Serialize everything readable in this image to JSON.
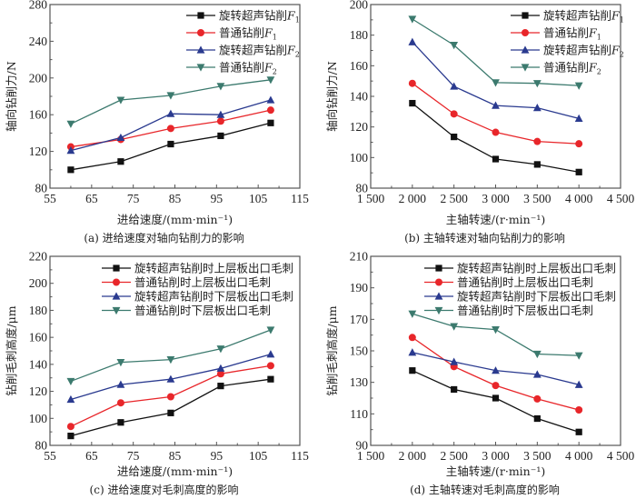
{
  "chart_data": [
    {
      "id": "a",
      "type": "line",
      "caption": "(a) 进给速度对轴向钻削力的影响",
      "xlabel": "进给速度/(mm·min⁻¹)",
      "ylabel": "轴向钻削力/N",
      "xlim": [
        55,
        115
      ],
      "ylim": [
        80,
        280
      ],
      "xticks": [
        55,
        65,
        75,
        85,
        95,
        105,
        115
      ],
      "xtick_labels": [
        "55",
        "65",
        "75",
        "85",
        "95",
        "105",
        "115"
      ],
      "yticks": [
        80,
        120,
        160,
        200,
        240,
        280
      ],
      "ytick_labels": [
        "80",
        "120",
        "160",
        "200",
        "240",
        "280"
      ],
      "x": [
        60,
        72,
        84,
        96,
        108
      ],
      "legend_position": "top-right",
      "grid": false,
      "series": [
        {
          "name": "旋转超声钻削",
          "sym": "F",
          "sub": "1",
          "color": "#111111",
          "marker": "square",
          "values": [
            100,
            109,
            128,
            137,
            151
          ]
        },
        {
          "name": "普通钻削",
          "sym": "F",
          "sub": "1",
          "color": "#e8262a",
          "marker": "circle",
          "values": [
            125,
            133,
            145,
            153,
            165
          ]
        },
        {
          "name": "旋转超声钻削",
          "sym": "F",
          "sub": "2",
          "color": "#2a3a8f",
          "marker": "triangle-up",
          "values": [
            121,
            135,
            161,
            160,
            176
          ]
        },
        {
          "name": "普通钻削",
          "sym": "F",
          "sub": "2",
          "color": "#3c7a6e",
          "marker": "triangle-down",
          "values": [
            150,
            176,
            181,
            191,
            198
          ]
        }
      ]
    },
    {
      "id": "b",
      "type": "line",
      "caption": "(b) 主轴转速对轴向钻削力的影响",
      "xlabel": "主轴转速/(r·min⁻¹)",
      "ylabel": "轴向钻削力/N",
      "xlim": [
        1500,
        4500
      ],
      "ylim": [
        80,
        200
      ],
      "xticks": [
        1500,
        2000,
        2500,
        3000,
        3500,
        4000,
        4500
      ],
      "xtick_labels": [
        "1 500",
        "2 000",
        "2 500",
        "3 000",
        "3 500",
        "4 000",
        "4 500"
      ],
      "yticks": [
        80,
        100,
        120,
        140,
        160,
        180,
        200
      ],
      "ytick_labels": [
        "80",
        "100",
        "120",
        "140",
        "160",
        "180",
        "200"
      ],
      "x": [
        2000,
        2500,
        3000,
        3500,
        4000
      ],
      "legend_position": "top-right",
      "grid": false,
      "series": [
        {
          "name": "旋转超声钻削",
          "sym": "F",
          "sub": "1",
          "color": "#111111",
          "marker": "square",
          "values": [
            135.5,
            113.5,
            99,
            95.5,
            90.5
          ]
        },
        {
          "name": "普通钻削",
          "sym": "F",
          "sub": "1",
          "color": "#e8262a",
          "marker": "circle",
          "values": [
            148.5,
            128.5,
            116.5,
            110.5,
            109
          ]
        },
        {
          "name": "旋转超声钻削",
          "sym": "F",
          "sub": "2",
          "color": "#2a3a8f",
          "marker": "triangle-up",
          "values": [
            175.5,
            146.5,
            134,
            132.5,
            125.5
          ]
        },
        {
          "name": "普通钻削",
          "sym": "F",
          "sub": "2",
          "color": "#3c7a6e",
          "marker": "triangle-down",
          "values": [
            190.5,
            173.5,
            149,
            148.5,
            147
          ]
        }
      ]
    },
    {
      "id": "c",
      "type": "line",
      "caption": "(c) 进给速度对毛刺高度的影响",
      "xlabel": "进给速度/(mm·min⁻¹)",
      "ylabel": "钻削毛刺高度/μm",
      "xlim": [
        55,
        115
      ],
      "ylim": [
        80,
        220
      ],
      "xticks": [
        55,
        65,
        75,
        85,
        95,
        105,
        115
      ],
      "xtick_labels": [
        "55",
        "65",
        "75",
        "85",
        "95",
        "105",
        "115"
      ],
      "yticks": [
        80,
        100,
        120,
        140,
        160,
        180,
        200,
        220
      ],
      "ytick_labels": [
        "80",
        "100",
        "120",
        "140",
        "160",
        "180",
        "200",
        "220"
      ],
      "x": [
        60,
        72,
        84,
        96,
        108
      ],
      "legend_position": "top-right",
      "grid": false,
      "series": [
        {
          "name": "旋转超声钻削时上层板出口毛刺",
          "sym": "",
          "sub": "",
          "color": "#111111",
          "marker": "square",
          "values": [
            87,
            97,
            104,
            124,
            129
          ]
        },
        {
          "name": "普通钻削时上层板出口毛刺",
          "sym": "",
          "sub": "",
          "color": "#e8262a",
          "marker": "circle",
          "values": [
            94,
            111.5,
            116,
            133,
            139
          ]
        },
        {
          "name": "旋转超声钻削时下层板出口毛刺",
          "sym": "",
          "sub": "",
          "color": "#2a3a8f",
          "marker": "triangle-up",
          "values": [
            114,
            125,
            129,
            137,
            147.5
          ]
        },
        {
          "name": "普通钻削时下层板出口毛刺",
          "sym": "",
          "sub": "",
          "color": "#3c7a6e",
          "marker": "triangle-down",
          "values": [
            127.5,
            141.5,
            143.5,
            151.5,
            165.5
          ]
        }
      ]
    },
    {
      "id": "d",
      "type": "line",
      "caption": "(d) 主轴转速对毛刺高度的影响",
      "xlabel": "主轴转速/(r·min⁻¹)",
      "ylabel": "钻削毛刺高度/μm",
      "xlim": [
        1500,
        4500
      ],
      "ylim": [
        90,
        210
      ],
      "xticks": [
        1500,
        2000,
        2500,
        3000,
        3500,
        4000,
        4500
      ],
      "xtick_labels": [
        "1 500",
        "2 000",
        "2 500",
        "3 000",
        "3 500",
        "4 000",
        "4 500"
      ],
      "yticks": [
        90,
        110,
        130,
        150,
        170,
        190,
        210
      ],
      "ytick_labels": [
        "90",
        "110",
        "130",
        "150",
        "170",
        "190",
        "210"
      ],
      "x": [
        2000,
        2500,
        3000,
        3500,
        4000
      ],
      "legend_position": "top-right",
      "grid": false,
      "series": [
        {
          "name": "旋转超声钻削时上层板出口毛刺",
          "sym": "",
          "sub": "",
          "color": "#111111",
          "marker": "square",
          "values": [
            137.5,
            125.5,
            120,
            107,
            98.5
          ]
        },
        {
          "name": "普通钻削时上层板出口毛刺",
          "sym": "",
          "sub": "",
          "color": "#e8262a",
          "marker": "circle",
          "values": [
            158.5,
            140,
            128,
            119.5,
            112.5
          ]
        },
        {
          "name": "旋转超声钻削时下层板出口毛刺",
          "sym": "",
          "sub": "",
          "color": "#2a3a8f",
          "marker": "triangle-up",
          "values": [
            149,
            143,
            137.5,
            135,
            128.5
          ]
        },
        {
          "name": "普通钻削时下层板出口毛刺",
          "sym": "",
          "sub": "",
          "color": "#3c7a6e",
          "marker": "triangle-down",
          "values": [
            173.5,
            165.5,
            163.5,
            148,
            147
          ]
        }
      ]
    }
  ]
}
